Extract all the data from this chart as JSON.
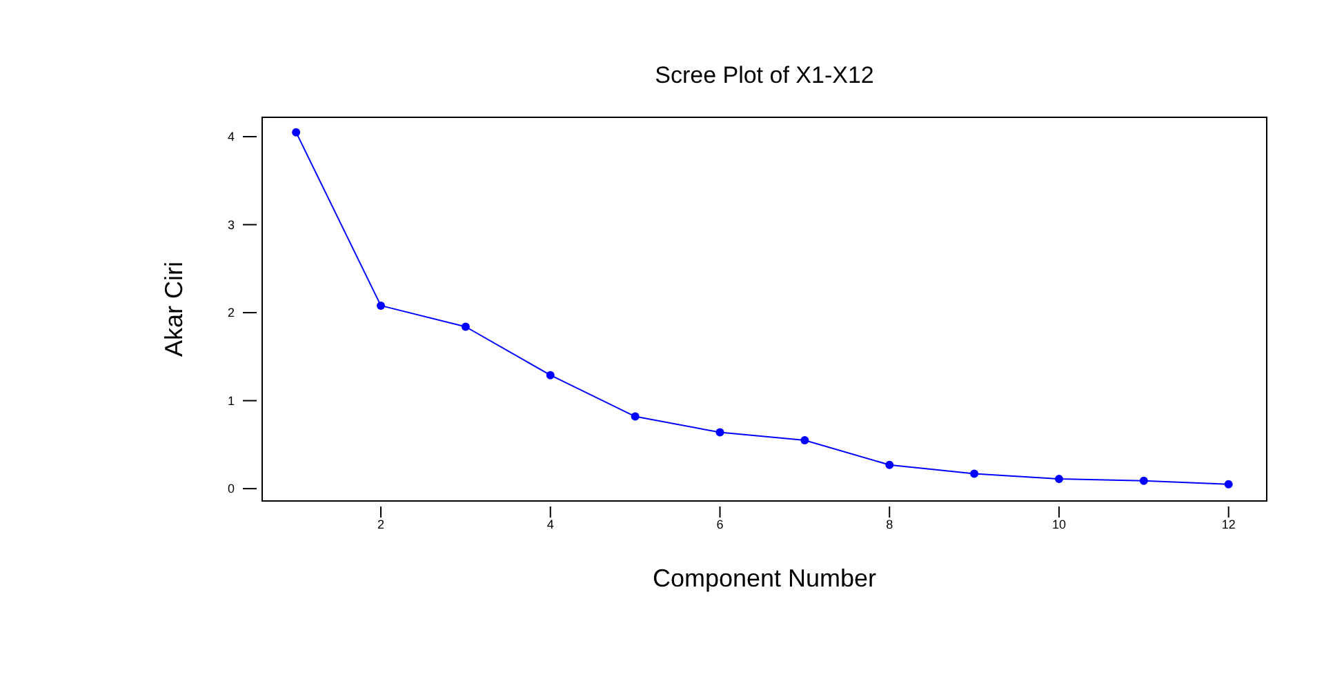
{
  "chart_data": {
    "type": "line",
    "title": "Scree Plot of X1-X12",
    "xlabel": "Component Number",
    "ylabel": "Akar Ciri",
    "x": [
      1,
      2,
      3,
      4,
      5,
      6,
      7,
      8,
      9,
      10,
      11,
      12
    ],
    "series": [
      {
        "color": "#0000ff",
        "values": [
          4.05,
          2.08,
          1.84,
          1.29,
          0.82,
          0.64,
          0.55,
          0.27,
          0.17,
          0.11,
          0.09,
          0.05
        ]
      }
    ],
    "xlim": [
      0.6,
      12.45
    ],
    "xticks": [
      2,
      4,
      6,
      8,
      10,
      12
    ],
    "ylim": [
      -0.14,
      4.22
    ],
    "yticks": [
      0,
      1,
      2,
      3,
      4
    ],
    "marker": "circle",
    "line_style": "solid"
  }
}
